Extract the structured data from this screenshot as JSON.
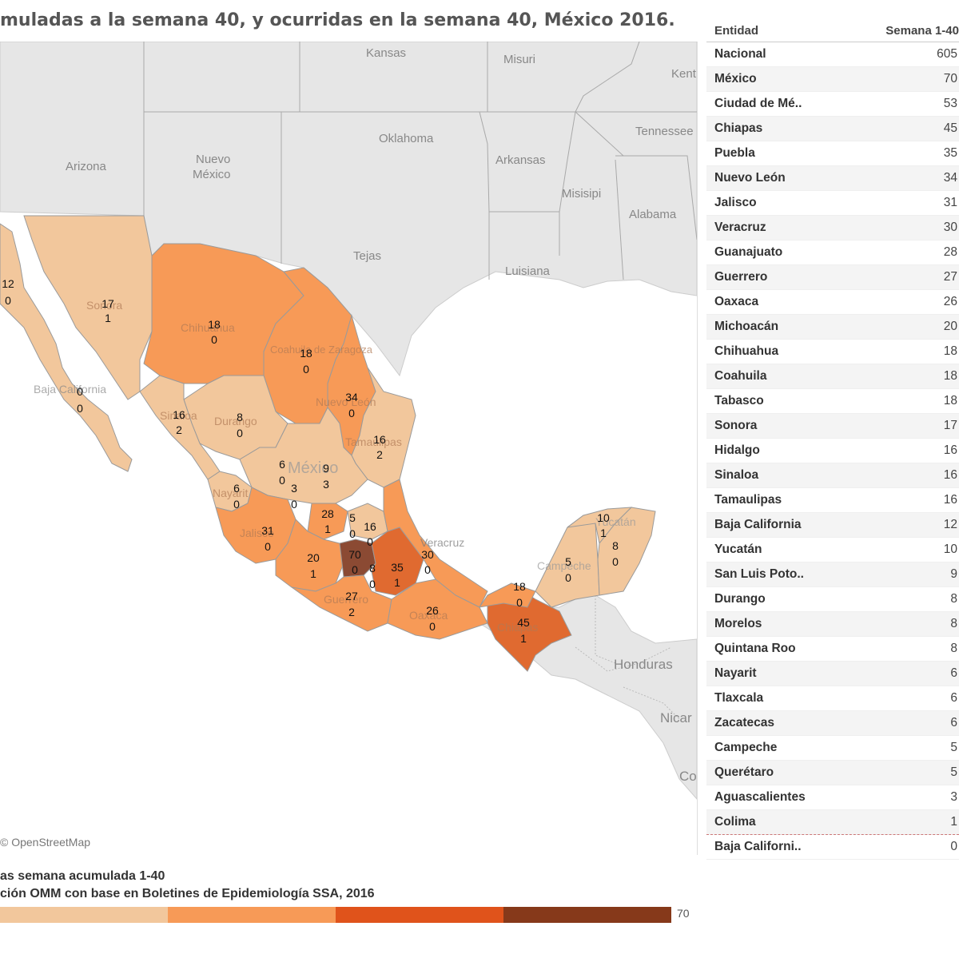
{
  "title": "muladas a la semana 40, y ocurridas en la semana 40, México 2016.",
  "map": {
    "credit": "© OpenStreetMap",
    "base_labels": [
      {
        "text": "Kansas"
      },
      {
        "text": "Misuri"
      },
      {
        "text": "Kent"
      },
      {
        "text": "Oklahoma"
      },
      {
        "text": "Tennessee"
      },
      {
        "text": "Arkansas"
      },
      {
        "text": "Arizona"
      },
      {
        "text": "Nuevo"
      },
      {
        "text": "México"
      },
      {
        "text": "Misisipi"
      },
      {
        "text": "Alabama"
      },
      {
        "text": "Tejas"
      },
      {
        "text": "Luisiana"
      },
      {
        "text": "Honduras"
      },
      {
        "text": "Nicar"
      },
      {
        "text": "Co"
      }
    ],
    "state_names": [
      "Baja California",
      "Sonora",
      "Chihuahua",
      "Coahuila de Zaragoza",
      "Nuevo León",
      "Tamaulipas",
      "Durango",
      "Sinaloa",
      "México",
      "Nayarit",
      "Jalisco",
      "Guerrero",
      "Oaxaca",
      "Chiapas",
      "Campeche",
      "Yucatán",
      "Veracruz"
    ],
    "values": [
      {
        "acc": "12",
        "week": "0"
      },
      {
        "acc": "17",
        "week": "1"
      },
      {
        "acc": "18",
        "week": "0"
      },
      {
        "acc": "18",
        "week": "0"
      },
      {
        "acc": "0",
        "week": "0"
      },
      {
        "acc": "34",
        "week": "0"
      },
      {
        "acc": "16",
        "week": "2"
      },
      {
        "acc": "8",
        "week": "0"
      },
      {
        "acc": "16",
        "week": "2"
      },
      {
        "acc": "6",
        "week": "0"
      },
      {
        "acc": "9",
        "week": "3"
      },
      {
        "acc": "6",
        "week": "0"
      },
      {
        "acc": "3",
        "week": "0"
      },
      {
        "acc": "28",
        "week": "1"
      },
      {
        "acc": "5",
        "week": "0"
      },
      {
        "acc": "16",
        "week": "0"
      },
      {
        "acc": "31",
        "week": "0"
      },
      {
        "acc": "70",
        "week": "0"
      },
      {
        "acc": "20",
        "week": "1"
      },
      {
        "acc": "8",
        "week": "0"
      },
      {
        "acc": "35",
        "week": "1"
      },
      {
        "acc": "30",
        "week": "0"
      },
      {
        "acc": "27",
        "week": "2"
      },
      {
        "acc": "26",
        "week": "0"
      },
      {
        "acc": "18",
        "week": "0"
      },
      {
        "acc": "45",
        "week": "1"
      },
      {
        "acc": "5",
        "week": "0"
      },
      {
        "acc": "10",
        "week": "1"
      },
      {
        "acc": "8",
        "week": "0"
      }
    ]
  },
  "table": {
    "headers": [
      "Entidad",
      "Semana 1-40"
    ],
    "rows": [
      [
        "Nacional",
        "605"
      ],
      [
        "México",
        "70"
      ],
      [
        "Ciudad de Mé..",
        "53"
      ],
      [
        "Chiapas",
        "45"
      ],
      [
        "Puebla",
        "35"
      ],
      [
        "Nuevo León",
        "34"
      ],
      [
        "Jalisco",
        "31"
      ],
      [
        "Veracruz",
        "30"
      ],
      [
        "Guanajuato",
        "28"
      ],
      [
        "Guerrero",
        "27"
      ],
      [
        "Oaxaca",
        "26"
      ],
      [
        "Michoacán",
        "20"
      ],
      [
        "Chihuahua",
        "18"
      ],
      [
        "Coahuila",
        "18"
      ],
      [
        "Tabasco",
        "18"
      ],
      [
        "Sonora",
        "17"
      ],
      [
        "Hidalgo",
        "16"
      ],
      [
        "Sinaloa",
        "16"
      ],
      [
        "Tamaulipas",
        "16"
      ],
      [
        "Baja California",
        "12"
      ],
      [
        "Yucatán",
        "10"
      ],
      [
        "San Luis Poto..",
        "9"
      ],
      [
        "Durango",
        "8"
      ],
      [
        "Morelos",
        "8"
      ],
      [
        "Quintana Roo",
        "8"
      ],
      [
        "Nayarit",
        "6"
      ],
      [
        "Tlaxcala",
        "6"
      ],
      [
        "Zacatecas",
        "6"
      ],
      [
        "Campeche",
        "5"
      ],
      [
        "Querétaro",
        "5"
      ],
      [
        "Aguascalientes",
        "3"
      ],
      [
        "Colima",
        "1"
      ],
      [
        "Baja Californi..",
        "0"
      ]
    ]
  },
  "legend": {
    "title": "as semana acumulada 1-40",
    "source": "ción OMM con base en Boletines de Epidemiología SSA, 2016",
    "max_label": "70",
    "colors": [
      "#f2c79c",
      "#f79a57",
      "#e0531b",
      "#86391a"
    ]
  },
  "colors": {
    "light": "#f2c79c",
    "mid": "#f79a57",
    "dark": "#e06a30",
    "darkest": "#8b4a33",
    "land": "#e6e6e6",
    "water": "#ffffff"
  }
}
